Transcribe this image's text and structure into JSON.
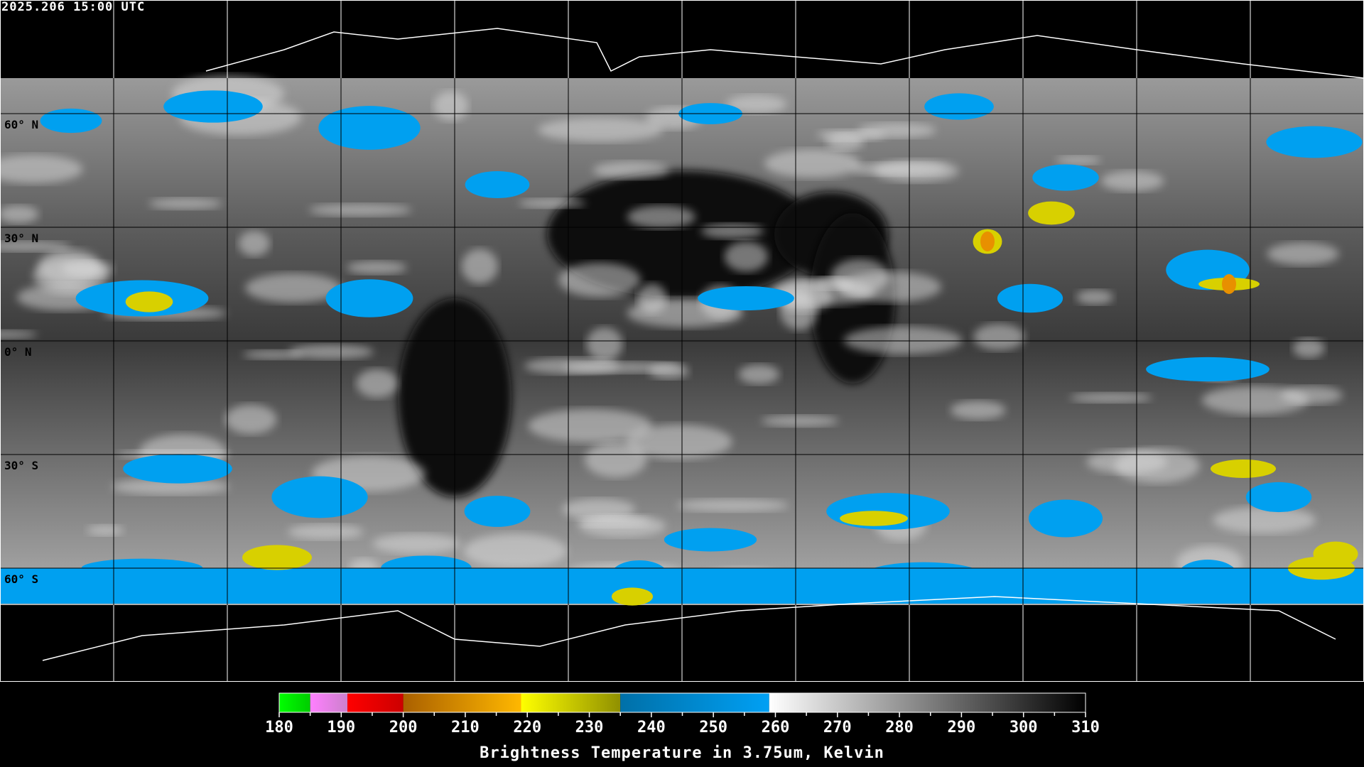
{
  "header": {
    "timestamp": "2025.206 15:00 UTC"
  },
  "map": {
    "projection": "equirectangular",
    "lat_labels": [
      "60° N",
      "30° N",
      "0° N",
      "30° S",
      "60° S"
    ],
    "lat_values": [
      60,
      30,
      0,
      -30,
      -60
    ],
    "lon_gridlines": [
      -150,
      -120,
      -90,
      -60,
      -30,
      0,
      30,
      60,
      90,
      120,
      150
    ],
    "colors": {
      "background": "#000000",
      "gridline": "#000000",
      "gridline_polar": "#ffffff",
      "coastline": "#000000"
    }
  },
  "colorbar": {
    "title": "Brightness Temperature in 3.75um, Kelvin",
    "min": 180,
    "max": 310,
    "tick_labels": [
      "180",
      "190",
      "200",
      "210",
      "220",
      "230",
      "240",
      "250",
      "260",
      "270",
      "280",
      "290",
      "300",
      "310"
    ],
    "segments": [
      {
        "from": 180,
        "to": 185,
        "colors": [
          "#00ff00",
          "#00cc00"
        ]
      },
      {
        "from": 185,
        "to": 191,
        "colors": [
          "#ff80ff",
          "#cc80cc"
        ]
      },
      {
        "from": 191,
        "to": 200,
        "colors": [
          "#ff0000",
          "#cc0000"
        ]
      },
      {
        "from": 200,
        "to": 219,
        "colors": [
          "#aa6000",
          "#ffb800"
        ]
      },
      {
        "from": 219,
        "to": 235,
        "colors": [
          "#ffff00",
          "#909000"
        ]
      },
      {
        "from": 235,
        "to": 259,
        "colors": [
          "#0070a8",
          "#00a0f4"
        ]
      },
      {
        "from": 259,
        "to": 310,
        "colors": [
          "#ffffff",
          "#000000"
        ]
      }
    ]
  }
}
